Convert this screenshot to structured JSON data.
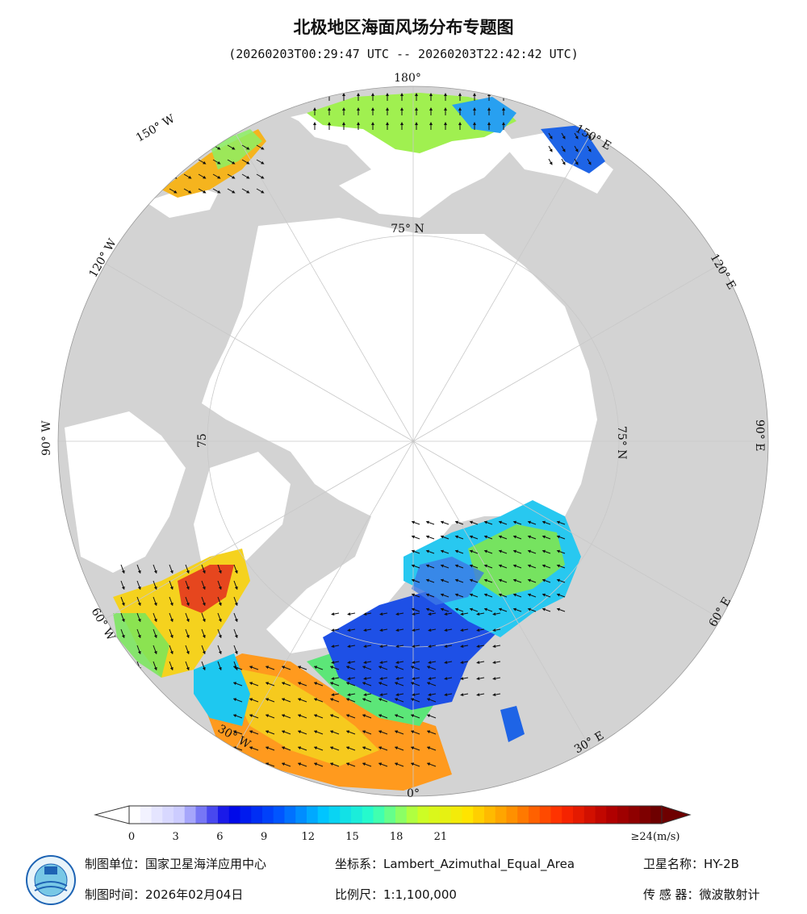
{
  "header": {
    "title": "北极地区海面风场分布专题图",
    "time_range": "(20260203T00:29:47 UTC -- 20260203T22:42:42 UTC)"
  },
  "map_labels": {
    "lon_180": "180°",
    "lon_150w": "150° W",
    "lon_120w": "120° W",
    "lon_90w": "90° W",
    "lon_60w": "60° W",
    "lon_30w": "30° W",
    "lon_0": "0°",
    "lon_30e": "30° E",
    "lon_60e": "60° E",
    "lon_90e": "90° E",
    "lon_120e": "120° E",
    "lon_150e": "150° E",
    "lat_75n_top": "75° N",
    "lat_75n_right": "75° N",
    "lat_75_left": "75"
  },
  "legend": {
    "ticks": [
      "0",
      "3",
      "6",
      "9",
      "12",
      "15",
      "18",
      "21",
      "≥24(m/s)"
    ],
    "colors": [
      "#ffffff",
      "#c8c8ff",
      "#0000e6",
      "#0050ff",
      "#00c8ff",
      "#28ffc8",
      "#c8ff28",
      "#ffe600",
      "#ff8c00",
      "#ff2800",
      "#b40000",
      "#6e0000"
    ]
  },
  "footer": {
    "unit": "制图单位：国家卫星海洋应用中心",
    "date": "制图时间：2026年02月04日",
    "crs": "坐标系：Lambert_Azimuthal_Equal_Area",
    "scale": "比例尺：1:1,100,000",
    "satellite": "卫星名称：HY-2B",
    "sensor": "传 感 器：微波散射计"
  },
  "colors": {
    "land": "#d3d3d3",
    "ocean_bg": "#ffffff",
    "grid": "#bbbbbb"
  }
}
